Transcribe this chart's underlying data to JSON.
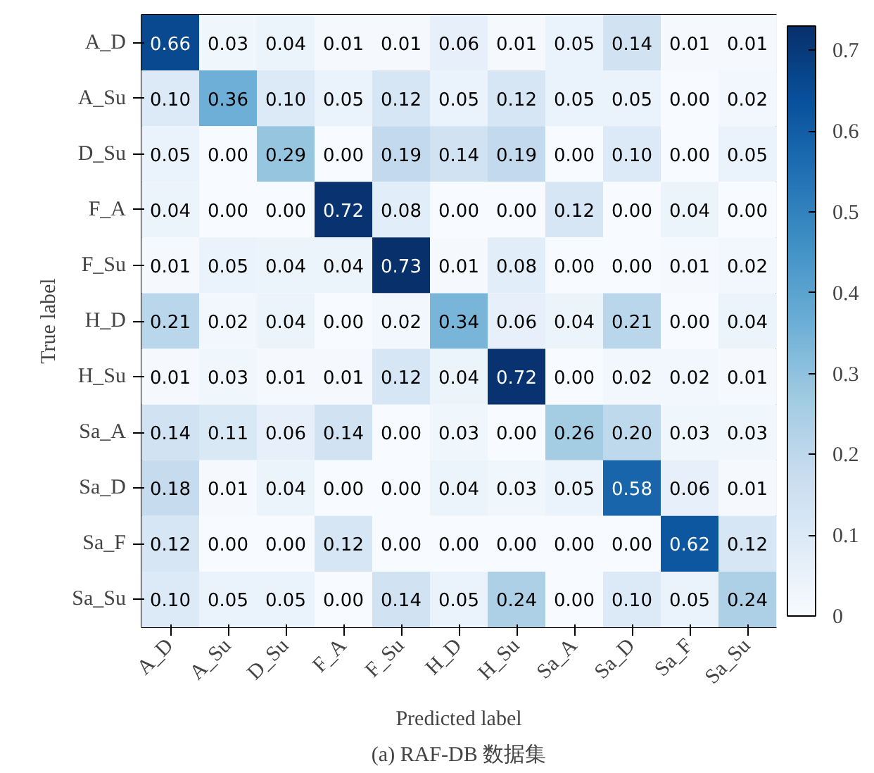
{
  "chart_data": {
    "type": "heatmap",
    "title": "(a) RAF-DB 数据集",
    "xlabel": "Predicted label",
    "ylabel": "True label",
    "categories": [
      "A_D",
      "A_Su",
      "D_Su",
      "F_A",
      "F_Su",
      "H_D",
      "H_Su",
      "Sa_A",
      "Sa_D",
      "Sa_F",
      "Sa_Su"
    ],
    "y_categories": [
      "A_D",
      "A_Su",
      "D_Su",
      "F_A",
      "F_Su",
      "H_D",
      "H_Su",
      "Sa_A",
      "Sa_D",
      "Sa_F",
      "Sa_Su"
    ],
    "cells": [
      [
        0.66,
        0.03,
        0.04,
        0.01,
        0.01,
        0.06,
        0.01,
        0.05,
        0.14,
        0.01,
        0.01
      ],
      [
        0.1,
        0.36,
        0.1,
        0.05,
        0.12,
        0.05,
        0.12,
        0.05,
        0.05,
        0.0,
        0.02
      ],
      [
        0.05,
        0.0,
        0.29,
        0.0,
        0.19,
        0.14,
        0.19,
        0.0,
        0.1,
        0.0,
        0.05
      ],
      [
        0.04,
        0.0,
        0.0,
        0.72,
        0.08,
        0.0,
        0.0,
        0.12,
        0.0,
        0.04,
        0.0
      ],
      [
        0.01,
        0.05,
        0.04,
        0.04,
        0.73,
        0.01,
        0.08,
        0.0,
        0.0,
        0.01,
        0.02
      ],
      [
        0.21,
        0.02,
        0.04,
        0.0,
        0.02,
        0.34,
        0.06,
        0.04,
        0.21,
        0.0,
        0.04
      ],
      [
        0.01,
        0.03,
        0.01,
        0.01,
        0.12,
        0.04,
        0.72,
        0.0,
        0.02,
        0.02,
        0.01
      ],
      [
        0.14,
        0.11,
        0.06,
        0.14,
        0.0,
        0.03,
        0.0,
        0.26,
        0.2,
        0.03,
        0.03
      ],
      [
        0.18,
        0.01,
        0.04,
        0.0,
        0.0,
        0.04,
        0.03,
        0.05,
        0.58,
        0.06,
        0.01
      ],
      [
        0.12,
        0.0,
        0.0,
        0.12,
        0.0,
        0.0,
        0.0,
        0.0,
        0.0,
        0.62,
        0.12
      ],
      [
        0.1,
        0.05,
        0.05,
        0.0,
        0.14,
        0.05,
        0.24,
        0.0,
        0.1,
        0.05,
        0.24
      ]
    ],
    "cell_labels": [
      [
        "0.66",
        "0.03",
        "0.04",
        "0.01",
        "0.01",
        "0.06",
        "0.01",
        "0.05",
        "0.14",
        "0.01",
        "0.01"
      ],
      [
        "0.10",
        "0.36",
        "0.10",
        "0.05",
        "0.12",
        "0.05",
        "0.12",
        "0.05",
        "0.05",
        "0.00",
        "0.02"
      ],
      [
        "0.05",
        "0.00",
        "0.29",
        "0.00",
        "0.19",
        "0.14",
        "0.19",
        "0.00",
        "0.10",
        "0.00",
        "0.05"
      ],
      [
        "0.04",
        "0.00",
        "0.00",
        "0.72",
        "0.08",
        "0.00",
        "0.00",
        "0.12",
        "0.00",
        "0.04",
        "0.00"
      ],
      [
        "0.01",
        "0.05",
        "0.04",
        "0.04",
        "0.73",
        "0.01",
        "0.08",
        "0.00",
        "0.00",
        "0.01",
        "0.02"
      ],
      [
        "0.21",
        "0.02",
        "0.04",
        "0.00",
        "0.02",
        "0.34",
        "0.06",
        "0.04",
        "0.21",
        "0.00",
        "0.04"
      ],
      [
        "0.01",
        "0.03",
        "0.01",
        "0.01",
        "0.12",
        "0.04",
        "0.72",
        "0.00",
        "0.02",
        "0.02",
        "0.01"
      ],
      [
        "0.14",
        "0.11",
        "0.06",
        "0.14",
        "0.00",
        "0.03",
        "0.00",
        "0.26",
        "0.20",
        "0.03",
        "0.03"
      ],
      [
        "0.18",
        "0.01",
        "0.04",
        "0.00",
        "0.00",
        "0.04",
        "0.03",
        "0.05",
        "0.58",
        "0.06",
        "0.01"
      ],
      [
        "0.12",
        "0.00",
        "0.00",
        "0.12",
        "0.00",
        "0.00",
        "0.00",
        "0.00",
        "0.00",
        "0.62",
        "0.12"
      ],
      [
        "0.10",
        "0.05",
        "0.05",
        "0.00",
        "0.14",
        "0.05",
        "0.24",
        "0.00",
        "0.10",
        "0.05",
        "0.24"
      ]
    ],
    "clim": [
      0,
      0.73
    ],
    "cticks": [
      0,
      0.1,
      0.2,
      0.3,
      0.4,
      0.5,
      0.6,
      0.7
    ]
  }
}
